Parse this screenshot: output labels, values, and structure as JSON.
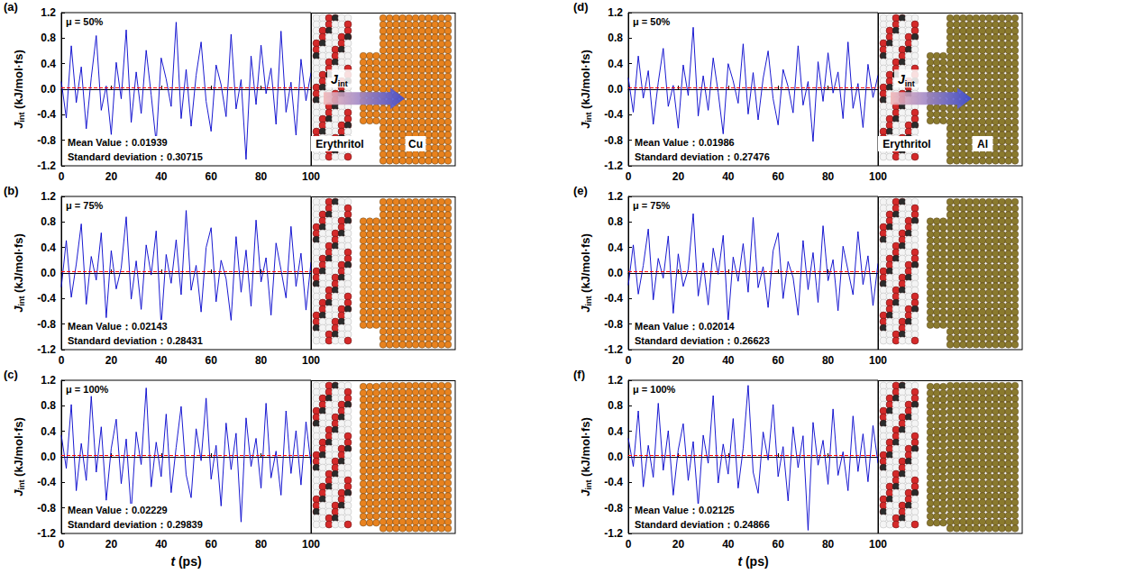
{
  "chart_data": [
    {
      "type": "line",
      "panel": "(a)",
      "annotation": "μ = 50%",
      "mu": 50,
      "mean": 0.01939,
      "mean_label": "Mean Value：0.01939",
      "std_label": "Standard deviation：0.30715",
      "ylabel": [
        "J",
        "int",
        " (kJ/mol·fs)"
      ],
      "color": "#0000cc",
      "grid": false,
      "xlim": [
        0,
        100
      ],
      "xticks": [
        0,
        20,
        40,
        60,
        80,
        100
      ],
      "ylim": [
        -1.2,
        1.2
      ],
      "yticks": [
        -1.2,
        -0.8,
        -0.4,
        {
          "value": 0,
          "label": "0.0"
        },
        0.4,
        0.8,
        1.2
      ],
      "x": [
        0,
        2,
        4,
        6,
        8,
        10,
        12,
        14,
        16,
        18,
        20,
        22,
        24,
        26,
        28,
        30,
        32,
        34,
        36,
        38,
        40,
        42,
        44,
        46,
        48,
        50,
        52,
        54,
        56,
        58,
        60,
        62,
        64,
        66,
        68,
        70,
        72,
        74,
        76,
        78,
        80,
        82,
        84,
        86,
        88,
        90,
        92,
        94,
        96,
        98,
        100
      ],
      "values": [
        0.12,
        -0.45,
        0.68,
        -0.21,
        0.35,
        -0.62,
        0.18,
        0.84,
        -0.33,
        0.05,
        -0.71,
        0.42,
        -0.15,
        0.93,
        -0.52,
        0.27,
        -0.38,
        0.61,
        -0.09,
        -0.84,
        0.49,
        0.16,
        -0.27,
        1.05,
        -0.46,
        0.31,
        -0.58,
        0.22,
        0.74,
        -0.19,
        -0.66,
        0.38,
        0.07,
        -0.43,
        0.86,
        -0.31,
        0.15,
        -1.1,
        0.52,
        -0.24,
        0.69,
        -0.07,
        0.33,
        -0.55,
        0.91,
        -0.36,
        0.11,
        -0.72,
        0.47,
        -0.18,
        0.26
      ],
      "inset": {
        "left_label": "Erythritol",
        "right_label": "Cu",
        "flux_label": [
          "J",
          "int"
        ],
        "metal_color": "#e8821e"
      }
    },
    {
      "type": "line",
      "panel": "(b)",
      "annotation": "μ = 75%",
      "mu": 75,
      "mean": 0.02143,
      "mean_label": "Mean Value：0.02143",
      "std_label": "Standard deviation：0.28431",
      "ylabel": [
        "J",
        "int",
        " (kJ/mol·fs)"
      ],
      "color": "#0000cc",
      "grid": false,
      "xlim": [
        0,
        100
      ],
      "xticks": [
        0,
        20,
        40,
        60,
        80,
        100
      ],
      "ylim": [
        -1.2,
        1.2
      ],
      "yticks": [
        -1.2,
        -0.8,
        -0.4,
        {
          "value": 0,
          "label": "0.0"
        },
        0.4,
        0.8,
        1.2
      ],
      "x": [
        0,
        2,
        4,
        6,
        8,
        10,
        12,
        14,
        16,
        18,
        20,
        22,
        24,
        26,
        28,
        30,
        32,
        34,
        36,
        38,
        40,
        42,
        44,
        46,
        48,
        50,
        52,
        54,
        56,
        58,
        60,
        62,
        64,
        66,
        68,
        70,
        72,
        74,
        76,
        78,
        80,
        82,
        84,
        86,
        88,
        90,
        92,
        94,
        96,
        98,
        100
      ],
      "values": [
        -0.22,
        0.51,
        -0.38,
        0.14,
        0.77,
        -0.49,
        0.26,
        -0.11,
        0.63,
        -0.7,
        0.35,
        -0.25,
        0.08,
        0.88,
        -0.41,
        0.19,
        -0.57,
        0.44,
        -0.03,
        0.66,
        -0.83,
        0.29,
        -0.16,
        0.52,
        -0.34,
        0.98,
        -0.27,
        0.12,
        -0.61,
        0.4,
        0.71,
        -0.45,
        0.2,
        -0.09,
        -0.74,
        0.57,
        -0.3,
        0.36,
        -0.52,
        0.83,
        -0.14,
        0.24,
        -0.66,
        0.47,
        0.05,
        -0.39,
        0.73,
        -0.21,
        0.31,
        -0.58,
        0.17
      ],
      "inset": {
        "metal_color": "#e8821e"
      }
    },
    {
      "type": "line",
      "panel": "(c)",
      "annotation": "μ = 100%",
      "mu": 100,
      "mean": 0.02229,
      "mean_label": "Mean Value：0.02229",
      "std_label": "Standard deviation：0.29839",
      "ylabel": [
        "J",
        "int",
        " (kJ/mol·fs)"
      ],
      "xlabel": [
        "t",
        " (ps)"
      ],
      "color": "#0000cc",
      "grid": false,
      "xlim": [
        0,
        100
      ],
      "xticks": [
        0,
        20,
        40,
        60,
        80,
        100
      ],
      "ylim": [
        -1.2,
        1.2
      ],
      "yticks": [
        -1.2,
        -0.8,
        -0.4,
        {
          "value": 0,
          "label": "0.0"
        },
        0.4,
        0.8,
        1.2
      ],
      "x": [
        0,
        2,
        4,
        6,
        8,
        10,
        12,
        14,
        16,
        18,
        20,
        22,
        24,
        26,
        28,
        30,
        32,
        34,
        36,
        38,
        40,
        42,
        44,
        46,
        48,
        50,
        52,
        54,
        56,
        58,
        60,
        62,
        64,
        66,
        68,
        70,
        72,
        74,
        76,
        78,
        80,
        82,
        84,
        86,
        88,
        90,
        92,
        94,
        96,
        98,
        100
      ],
      "values": [
        0.34,
        -0.18,
        0.82,
        -0.53,
        0.21,
        -0.37,
        0.95,
        -0.24,
        0.47,
        -0.68,
        0.13,
        0.59,
        -0.42,
        0.28,
        -0.86,
        0.39,
        -0.12,
        1.08,
        -0.47,
        0.23,
        -0.31,
        0.67,
        -0.56,
        0.15,
        0.79,
        -0.28,
        -0.64,
        0.44,
        -0.06,
        0.92,
        -0.35,
        0.18,
        -0.77,
        0.53,
        -0.2,
        0.37,
        -1.02,
        0.61,
        -0.15,
        0.29,
        -0.49,
        0.84,
        -0.33,
        0.09,
        -0.6,
        0.72,
        -0.26,
        0.41,
        -0.44,
        0.55,
        -0.12
      ],
      "inset": {
        "metal_color": "#e8821e"
      }
    },
    {
      "type": "line",
      "panel": "(d)",
      "annotation": "μ = 50%",
      "mu": 50,
      "mean": 0.01986,
      "mean_label": "Mean Value：0.01986",
      "std_label": "Standard deviation：0.27476",
      "ylabel": [
        "J",
        "int",
        " (kJ/mol·fs)"
      ],
      "color": "#0000cc",
      "grid": false,
      "xlim": [
        0,
        100
      ],
      "xticks": [
        0,
        20,
        40,
        60,
        80,
        100
      ],
      "ylim": [
        -1.2,
        1.2
      ],
      "yticks": [
        -1.2,
        -0.8,
        -0.4,
        {
          "value": 0,
          "label": "0.0"
        },
        0.4,
        0.8,
        1.2
      ],
      "x": [
        0,
        2,
        4,
        6,
        8,
        10,
        12,
        14,
        16,
        18,
        20,
        22,
        24,
        26,
        28,
        30,
        32,
        34,
        36,
        38,
        40,
        42,
        44,
        46,
        48,
        50,
        52,
        54,
        56,
        58,
        60,
        62,
        64,
        66,
        68,
        70,
        72,
        74,
        76,
        78,
        80,
        82,
        84,
        86,
        88,
        90,
        92,
        94,
        96,
        98,
        100
      ],
      "values": [
        0.18,
        -0.36,
        0.52,
        -0.14,
        0.29,
        -0.55,
        0.11,
        0.64,
        -0.27,
        0.06,
        -0.61,
        0.38,
        -0.1,
        0.97,
        -0.42,
        0.21,
        -0.33,
        0.49,
        -0.05,
        -0.7,
        0.4,
        0.13,
        -0.22,
        0.71,
        -0.39,
        0.26,
        -0.48,
        0.17,
        0.6,
        -0.15,
        -0.56,
        0.31,
        0.04,
        -0.37,
        0.68,
        -0.25,
        0.12,
        -0.82,
        0.43,
        -0.19,
        0.57,
        -0.06,
        0.27,
        -0.46,
        0.74,
        -0.3,
        0.09,
        -0.6,
        0.39,
        -0.13,
        0.22
      ],
      "inset": {
        "left_label": "Erythritol",
        "right_label": "Al",
        "flux_label": [
          "J",
          "int"
        ],
        "metal_color": "#8a7a2e"
      }
    },
    {
      "type": "line",
      "panel": "(e)",
      "annotation": "μ = 75%",
      "mu": 75,
      "mean": 0.02014,
      "mean_label": "Mean Value：0.02014",
      "std_label": "Standard deviation：0.26623",
      "ylabel": [
        "J",
        "int",
        " (kJ/mol·fs)"
      ],
      "color": "#0000cc",
      "grid": false,
      "xlim": [
        0,
        100
      ],
      "xticks": [
        0,
        20,
        40,
        60,
        80,
        100
      ],
      "ylim": [
        -1.2,
        1.2
      ],
      "yticks": [
        -1.2,
        -0.8,
        -0.4,
        {
          "value": 0,
          "label": "0.0"
        },
        0.4,
        0.8,
        1.2
      ],
      "x": [
        0,
        2,
        4,
        6,
        8,
        10,
        12,
        14,
        16,
        18,
        20,
        22,
        24,
        26,
        28,
        30,
        32,
        34,
        36,
        38,
        40,
        42,
        44,
        46,
        48,
        50,
        52,
        54,
        56,
        58,
        60,
        62,
        64,
        66,
        68,
        70,
        72,
        74,
        76,
        78,
        80,
        82,
        84,
        86,
        88,
        90,
        92,
        94,
        96,
        98,
        100
      ],
      "values": [
        -0.19,
        0.44,
        -0.33,
        0.12,
        0.69,
        -0.42,
        0.23,
        -0.08,
        0.58,
        -0.63,
        0.3,
        -0.21,
        0.06,
        0.93,
        -0.36,
        0.16,
        -0.5,
        0.39,
        -0.02,
        0.59,
        -0.76,
        0.25,
        -0.13,
        0.46,
        -0.3,
        0.87,
        -0.23,
        0.1,
        -0.54,
        0.35,
        0.63,
        -0.4,
        0.18,
        -0.07,
        -0.66,
        0.51,
        -0.26,
        0.32,
        -0.46,
        0.74,
        -0.12,
        0.21,
        -0.59,
        0.42,
        0.04,
        -0.34,
        0.65,
        -0.18,
        0.27,
        -0.51,
        0.15
      ],
      "inset": {
        "metal_color": "#8a7a2e"
      }
    },
    {
      "type": "line",
      "panel": "(f)",
      "annotation": "μ = 100%",
      "mu": 100,
      "mean": 0.02125,
      "mean_label": "Mean Value：0.02125",
      "std_label": "Standard deviation：0.24866",
      "ylabel": [
        "J",
        "int",
        " (kJ/mol·fs)"
      ],
      "xlabel": [
        "t",
        " (ps)"
      ],
      "color": "#0000cc",
      "grid": false,
      "xlim": [
        0,
        100
      ],
      "xticks": [
        0,
        20,
        40,
        60,
        80,
        100
      ],
      "ylim": [
        -1.2,
        1.2
      ],
      "yticks": [
        -1.2,
        -0.8,
        -0.4,
        {
          "value": 0,
          "label": "0.0"
        },
        0.4,
        0.8,
        1.2
      ],
      "x": [
        0,
        2,
        4,
        6,
        8,
        10,
        12,
        14,
        16,
        18,
        20,
        22,
        24,
        26,
        28,
        30,
        32,
        34,
        36,
        38,
        40,
        42,
        44,
        46,
        48,
        50,
        52,
        54,
        56,
        58,
        60,
        62,
        64,
        66,
        68,
        70,
        72,
        74,
        76,
        78,
        80,
        82,
        84,
        86,
        88,
        90,
        92,
        94,
        96,
        98,
        100
      ],
      "values": [
        0.29,
        -0.15,
        0.72,
        -0.47,
        0.18,
        -0.32,
        0.84,
        -0.21,
        0.41,
        -0.6,
        0.11,
        0.52,
        -0.37,
        0.24,
        -0.77,
        0.34,
        -0.1,
        0.96,
        -0.41,
        0.2,
        -0.27,
        0.6,
        -0.49,
        0.13,
        1.12,
        -0.24,
        -0.57,
        0.39,
        -0.05,
        0.82,
        -0.31,
        0.16,
        -0.69,
        0.47,
        -0.17,
        0.33,
        -1.15,
        0.54,
        -0.13,
        0.26,
        -0.43,
        0.75,
        -0.29,
        0.08,
        -0.53,
        0.64,
        -0.23,
        0.36,
        -0.39,
        0.49,
        -0.1
      ],
      "inset": {
        "metal_color": "#8a7a2e"
      }
    }
  ]
}
